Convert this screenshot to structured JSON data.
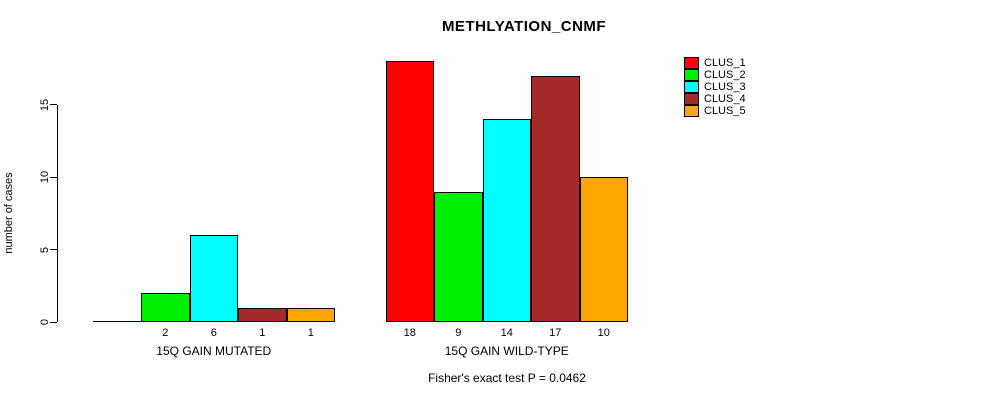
{
  "chart_data": {
    "type": "bar",
    "title": "METHLYATION_CNMF",
    "ylabel": "number of cases",
    "xlabel": "",
    "yticks": [
      0,
      5,
      10,
      15
    ],
    "ylim": [
      0,
      18
    ],
    "grid": false,
    "background_color": "#FFFFFF",
    "axis_color": "#000000",
    "categories": [
      "15Q GAIN MUTATED",
      "15Q GAIN WILD-TYPE"
    ],
    "series": [
      {
        "name": "CLUS_1",
        "color": "#FF0000",
        "values": [
          0,
          18
        ]
      },
      {
        "name": "CLUS_2",
        "color": "#00EE00",
        "values": [
          2,
          9
        ]
      },
      {
        "name": "CLUS_3",
        "color": "#00FFFF",
        "values": [
          6,
          14
        ]
      },
      {
        "name": "CLUS_4",
        "color": "#A52A2A",
        "values": [
          1,
          17
        ]
      },
      {
        "name": "CLUS_5",
        "color": "#FFA500",
        "values": [
          1,
          10
        ]
      }
    ],
    "bar_value_labels_shown": true,
    "zero_bars_unlabeled": true,
    "legend": {
      "position": "top-right",
      "entries": [
        "CLUS_1",
        "CLUS_2",
        "CLUS_3",
        "CLUS_4",
        "CLUS_5"
      ]
    },
    "annotation": "Fisher's exact test P = 0.0462"
  }
}
